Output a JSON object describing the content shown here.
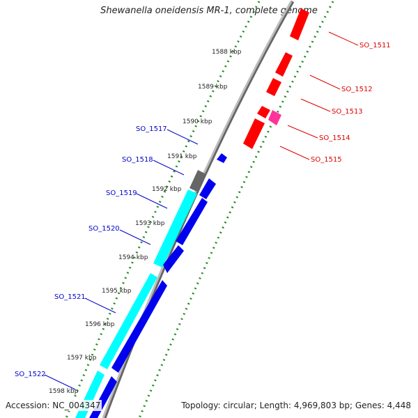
{
  "title": "Shewanella oneidensis MR-1, complete genome",
  "footer": {
    "accession": "Accession: NC_004347",
    "summary": "Topology: circular; Length: 4,969,803 bp; Genes: 4,448"
  },
  "colors": {
    "backbone": "#8c8c8c",
    "forward_gene": "#ff0000",
    "forward_gene_alt": "#ff3399",
    "reverse_gene": "#0000ee",
    "reverse_cds": "#00ffff",
    "pseudo": "#666666",
    "scale": "#228b22",
    "forward_label": "#dd0000",
    "reverse_label": "#0000cc"
  },
  "scale_labels": [
    "1588 kbp",
    "1589 kbp",
    "1590 kbp",
    "1591 kbp",
    "1592 kbp",
    "1593 kbp",
    "1594 kbp",
    "1595 kbp",
    "1596 kbp",
    "1597 kbp",
    "1598 kbp"
  ],
  "forward_labels": [
    "SO_1511",
    "SO_1512",
    "SO_1513",
    "SO_1514",
    "SO_1515"
  ],
  "reverse_labels": [
    "SO_1517",
    "SO_1518",
    "SO_1519",
    "SO_1520",
    "SO_1521",
    "SO_1522"
  ]
}
